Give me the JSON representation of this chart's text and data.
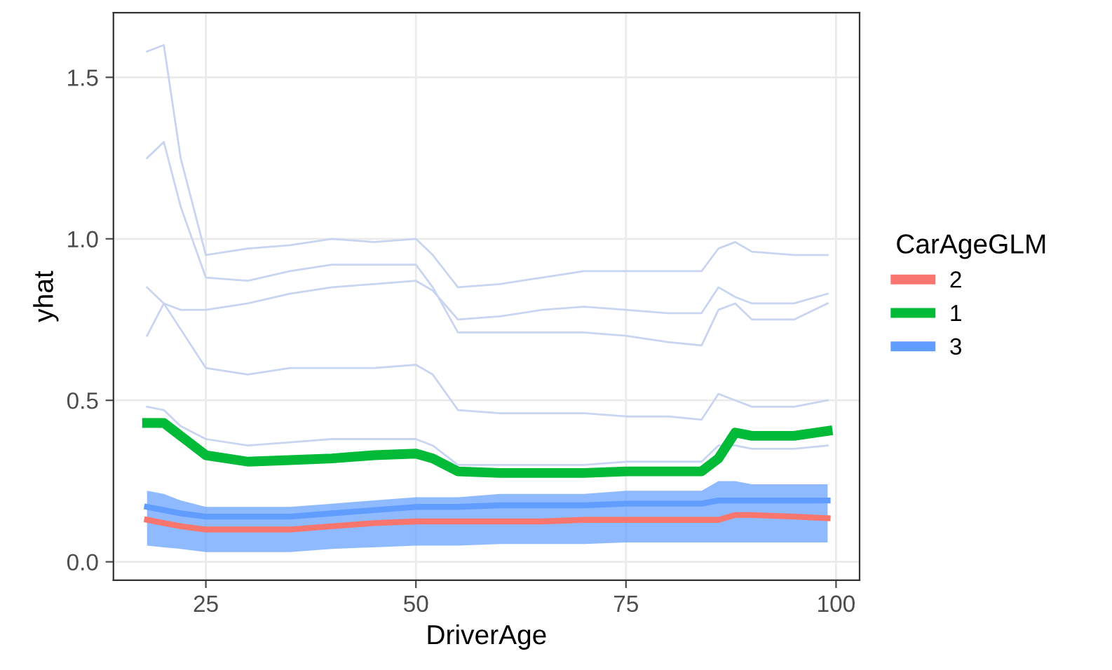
{
  "chart_data": {
    "type": "line",
    "xlabel": "DriverAge",
    "ylabel": "yhat",
    "legend_title": "CarAgeGLM",
    "legend": "right",
    "grid": true,
    "x": [
      18,
      20,
      22,
      25,
      30,
      35,
      40,
      45,
      50,
      52,
      55,
      60,
      65,
      70,
      75,
      80,
      84,
      86,
      88,
      90,
      95,
      99
    ],
    "xlim": [
      14,
      102.8
    ],
    "xticks": [
      25,
      50,
      75,
      100
    ],
    "ylim": [
      -0.057,
      1.7
    ],
    "yticks": [
      {
        "value": 0,
        "label": "0.0"
      },
      {
        "value": 0.5,
        "label": "0.5"
      },
      {
        "value": 1,
        "label": "1.0"
      },
      {
        "value": 1.5,
        "label": "1.5"
      }
    ],
    "series": [
      {
        "color": "#c9d5f0",
        "values": [
          1.58,
          1.6,
          1.25,
          0.95,
          0.97,
          0.98,
          1.0,
          0.99,
          1.0,
          0.95,
          0.85,
          0.86,
          0.88,
          0.9,
          0.9,
          0.9,
          0.9,
          0.97,
          0.99,
          0.96,
          0.95,
          0.95
        ]
      },
      {
        "color": "#c9d5f0",
        "values": [
          1.25,
          1.3,
          1.1,
          0.88,
          0.87,
          0.9,
          0.92,
          0.92,
          0.92,
          0.85,
          0.71,
          0.71,
          0.71,
          0.71,
          0.7,
          0.68,
          0.67,
          0.78,
          0.8,
          0.75,
          0.75,
          0.8
        ]
      },
      {
        "color": "#c9d5f0",
        "values": [
          0.85,
          0.8,
          0.78,
          0.78,
          0.8,
          0.83,
          0.85,
          0.86,
          0.87,
          0.84,
          0.75,
          0.76,
          0.78,
          0.79,
          0.78,
          0.77,
          0.77,
          0.85,
          0.82,
          0.8,
          0.8,
          0.83
        ]
      },
      {
        "color": "#c9d5f0",
        "values": [
          0.7,
          0.8,
          0.72,
          0.6,
          0.58,
          0.6,
          0.6,
          0.6,
          0.61,
          0.58,
          0.47,
          0.46,
          0.46,
          0.46,
          0.45,
          0.45,
          0.44,
          0.52,
          0.5,
          0.48,
          0.48,
          0.5
        ]
      },
      {
        "color": "#c9d5f0",
        "values": [
          0.48,
          0.47,
          0.42,
          0.38,
          0.36,
          0.37,
          0.38,
          0.38,
          0.38,
          0.36,
          0.3,
          0.3,
          0.3,
          0.3,
          0.31,
          0.31,
          0.31,
          0.36,
          0.36,
          0.35,
          0.35,
          0.36
        ]
      },
      {
        "name": "2",
        "color": "#f8766d",
        "values": [
          0.13,
          0.12,
          0.11,
          0.1,
          0.1,
          0.1,
          0.11,
          0.12,
          0.125,
          0.125,
          0.125,
          0.125,
          0.125,
          0.13,
          0.13,
          0.13,
          0.13,
          0.13,
          0.145,
          0.145,
          0.14,
          0.135
        ]
      },
      {
        "name": "1",
        "color": "#00ba38",
        "values": [
          0.43,
          0.43,
          0.39,
          0.33,
          0.31,
          0.315,
          0.32,
          0.33,
          0.335,
          0.32,
          0.28,
          0.275,
          0.275,
          0.275,
          0.28,
          0.28,
          0.28,
          0.32,
          0.4,
          0.39,
          0.39,
          0.405
        ]
      },
      {
        "name": "3",
        "color": "#619cff",
        "values": [
          0.17,
          0.16,
          0.15,
          0.14,
          0.14,
          0.14,
          0.15,
          0.16,
          0.17,
          0.17,
          0.17,
          0.175,
          0.175,
          0.175,
          0.18,
          0.18,
          0.18,
          0.19,
          0.19,
          0.19,
          0.19,
          0.19
        ],
        "lower": [
          0.05,
          0.045,
          0.04,
          0.03,
          0.03,
          0.03,
          0.04,
          0.045,
          0.05,
          0.05,
          0.05,
          0.055,
          0.055,
          0.055,
          0.06,
          0.06,
          0.06,
          0.06,
          0.06,
          0.06,
          0.06,
          0.06
        ],
        "upper": [
          0.22,
          0.21,
          0.19,
          0.17,
          0.17,
          0.17,
          0.18,
          0.19,
          0.2,
          0.2,
          0.2,
          0.21,
          0.21,
          0.21,
          0.22,
          0.22,
          0.22,
          0.25,
          0.25,
          0.24,
          0.24,
          0.24
        ]
      }
    ]
  }
}
